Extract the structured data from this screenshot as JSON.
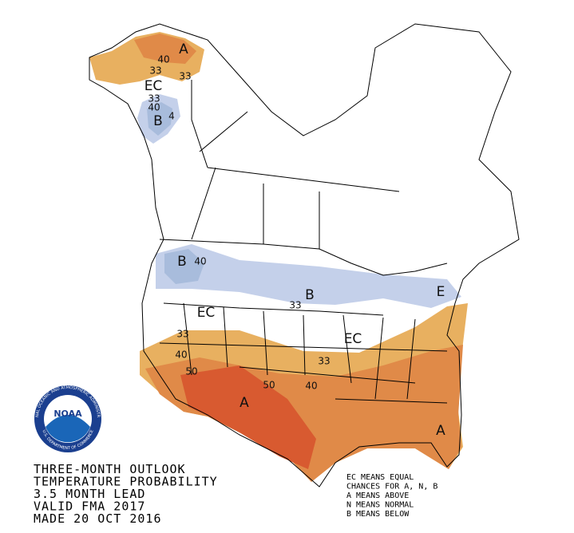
{
  "map_labels": [
    "A",
    "40",
    "33",
    "33",
    "EC",
    "33",
    "40",
    "B",
    "4",
    "B",
    "40",
    "B",
    "33",
    "EC",
    "33",
    "40",
    "50",
    "50",
    "A",
    "40",
    "33",
    "EC",
    "E",
    "A"
  ],
  "caption": [
    "THREE-MONTH OUTLOOK",
    "TEMPERATURE PROBABILITY",
    "3.5 MONTH LEAD",
    "VALID FMA 2017",
    "MADE 20 OCT 2016"
  ],
  "legend": [
    "EC MEANS EQUAL",
    "CHANCES FOR A, N, B",
    "A MEANS ABOVE",
    "N MEANS NORMAL",
    "B MEANS BELOW"
  ],
  "logo": {
    "name": "NOAA",
    "ring_top": "NATIONAL OCEANIC AND ATMOSPHERIC ADMINISTRATION",
    "ring_bottom": "U.S. DEPARTMENT OF COMMERCE"
  }
}
